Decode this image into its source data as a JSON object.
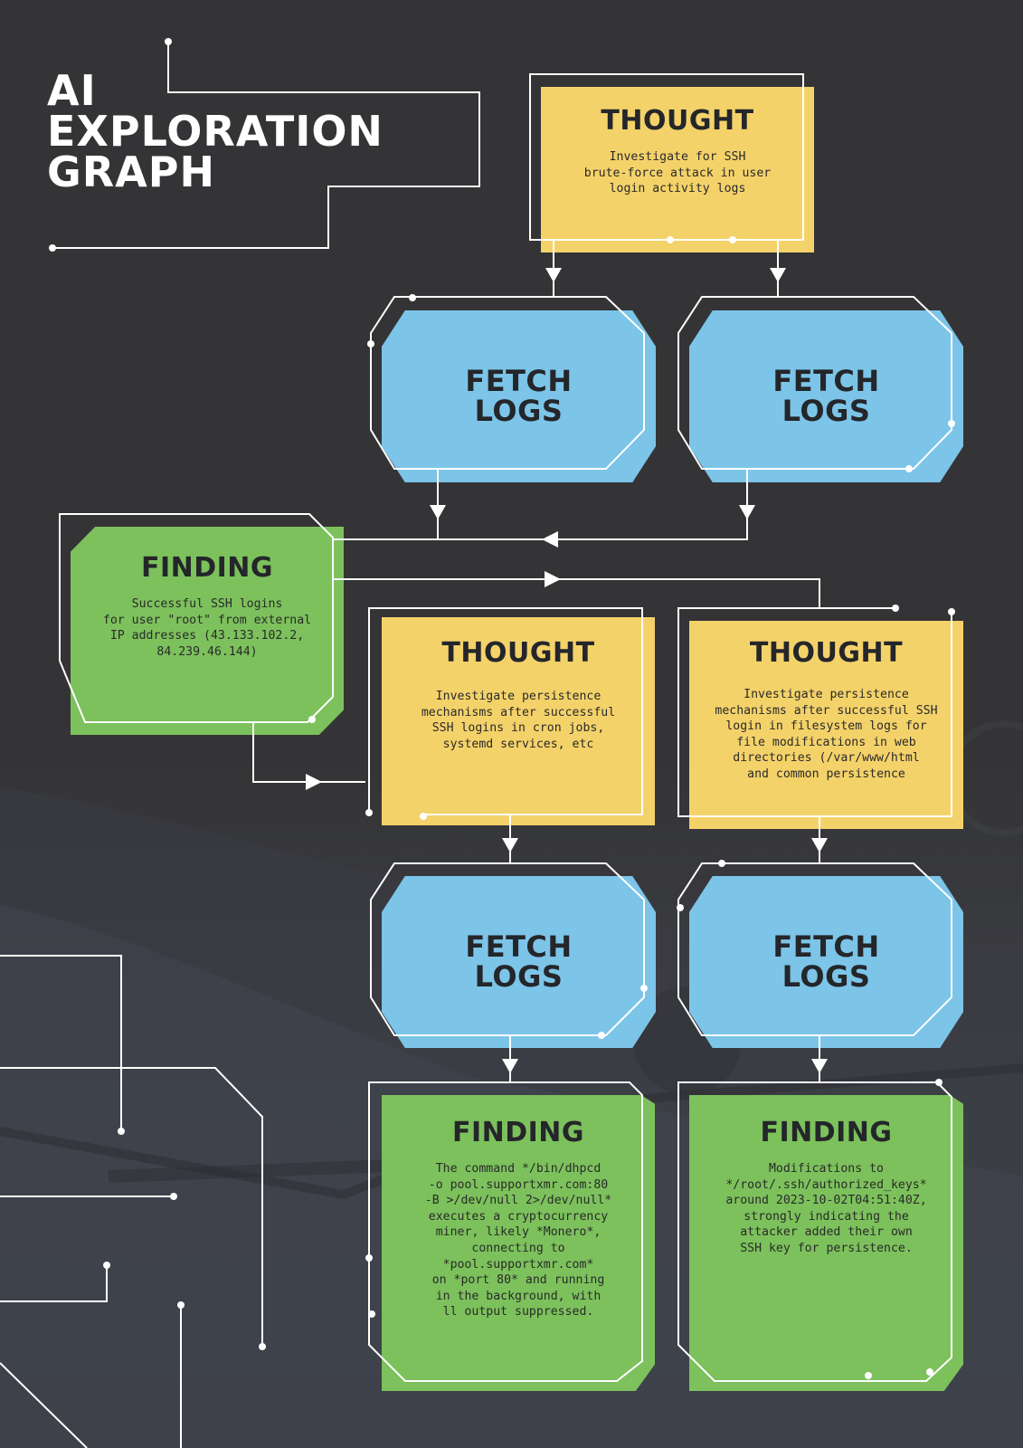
{
  "title": {
    "line1": "AI",
    "line2": "EXPLORATION",
    "line3": "GRAPH"
  },
  "colors": {
    "background": "#333335",
    "thought": "#f4d26a",
    "fetch": "#7cc4e8",
    "finding": "#7cc15c",
    "wire": "#ffffff",
    "text_dark": "#24262a"
  },
  "nodes": {
    "thought_1": {
      "type": "THOUGHT",
      "text": "Investigate for SSH\nbrute-force attack in user\nlogin activity logs"
    },
    "fetch_1": {
      "label": "FETCH\nLOGS"
    },
    "fetch_2": {
      "label": "FETCH\nLOGS"
    },
    "finding_1": {
      "type": "FINDING",
      "text": "Successful SSH logins\nfor user \"root\" from external\nIP addresses (43.133.102.2,\n84.239.46.144)"
    },
    "thought_2": {
      "type": "THOUGHT",
      "text": "Investigate persistence\nmechanisms after successful\nSSH logins in cron jobs,\nsystemd services, etc"
    },
    "thought_3": {
      "type": "THOUGHT",
      "text": "Investigate persistence\nmechanisms after successful SSH\nlogin in filesystem logs for\nfile modifications in web\ndirectories (/var/www/html\nand common persistence"
    },
    "fetch_3": {
      "label": "FETCH\nLOGS"
    },
    "fetch_4": {
      "label": "FETCH\nLOGS"
    },
    "finding_2": {
      "type": "FINDING",
      "text": "The command */bin/dhpcd\n-o pool.supportxmr.com:80\n-B >/dev/null 2>/dev/null*\nexecutes a cryptocurrency\nminer, likely *Monero*,\nconnecting to\n*pool.supportxmr.com*\non *port 80* and running\nin the background, with\nll output suppressed."
    },
    "finding_3": {
      "type": "FINDING",
      "text": "Modifications to\n*/root/.ssh/authorized_keys*\naround 2023-10-02T04:51:40Z,\nstrongly indicating the\nattacker added their own\nSSH key for persistence."
    }
  }
}
